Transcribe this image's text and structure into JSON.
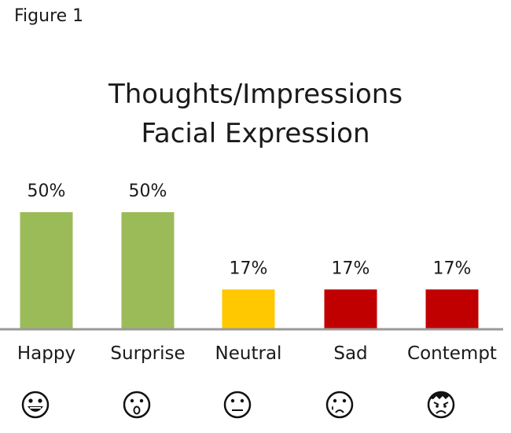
{
  "figure_label": "Figure 1",
  "colors": {
    "green": "#9bbb59",
    "yellow": "#ffc800",
    "red": "#c00000",
    "baseline": "#9a9a9a"
  },
  "chart_data": {
    "type": "bar",
    "title": "Thoughts/Impressions",
    "subtitle": "Facial Expression",
    "categories": [
      "Happy",
      "Surprise",
      "Neutral",
      "Sad",
      "Contempt"
    ],
    "values": [
      50,
      50,
      17,
      17,
      17
    ],
    "value_labels": [
      "50%",
      "50%",
      "17%",
      "17%",
      "17%"
    ],
    "bar_colors": [
      "#9bbb59",
      "#9bbb59",
      "#ffc800",
      "#c00000",
      "#c00000"
    ],
    "icons": [
      "grinning-face-icon",
      "surprised-face-icon",
      "neutral-face-icon",
      "crying-face-icon",
      "angry-face-icon"
    ],
    "xlabel": "",
    "ylabel": "",
    "ylim": [
      0,
      50
    ],
    "grid": false,
    "legend": "none"
  }
}
